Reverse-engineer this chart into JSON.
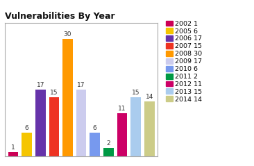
{
  "title": "Vulnerabilities By Year",
  "categories": [
    "2002",
    "2005",
    "2006",
    "2007",
    "2008",
    "2009",
    "2010",
    "2011",
    "2012",
    "2013",
    "2014"
  ],
  "values": [
    1,
    6,
    17,
    15,
    30,
    17,
    6,
    2,
    11,
    15,
    14
  ],
  "colors": [
    "#cc0055",
    "#f5c500",
    "#6633aa",
    "#ee3322",
    "#ff9900",
    "#ccccee",
    "#7799ee",
    "#009944",
    "#cc0066",
    "#aaccee",
    "#cccc88"
  ],
  "legend_labels": [
    "2002 1",
    "2005 6",
    "2006 17",
    "2007 15",
    "2008 30",
    "2009 17",
    "2010 6",
    "2011 2",
    "2012 11",
    "2013 15",
    "2014 14"
  ],
  "ylim": [
    0,
    34
  ],
  "title_fontsize": 9,
  "bar_label_fontsize": 6.5,
  "legend_fontsize": 6.8,
  "background_color": "#ffffff",
  "plot_bg_color": "#ffffff",
  "border_color": "#aaaaaa"
}
